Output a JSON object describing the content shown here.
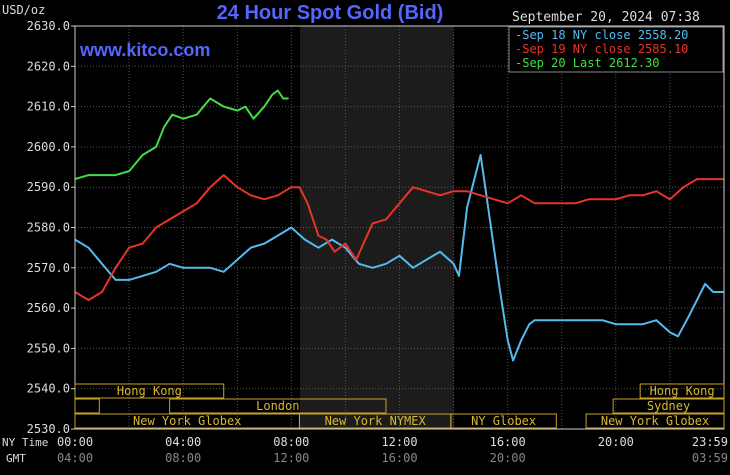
{
  "chart_data": {
    "type": "line",
    "title": "24 Hour Spot Gold (Bid)",
    "site": "www.kitco.com",
    "unit_label": "USD/oz",
    "timestamp": "September 20, 2024 07:38",
    "ylim": [
      2530,
      2630
    ],
    "y_ticks": [
      "2630.0",
      "2620.0",
      "2610.0",
      "2600.0",
      "2590.0",
      "2580.0",
      "2570.0",
      "2560.0",
      "2550.0",
      "2540.0",
      "2530.0"
    ],
    "x_row_labels": [
      "NY Time",
      "GMT"
    ],
    "ny_time_ticks": [
      "00:00",
      "04:00",
      "08:00",
      "12:00",
      "16:00",
      "20:00",
      "23:59"
    ],
    "gmt_ticks": [
      "04:00",
      "08:00",
      "12:00",
      "16:00",
      "20:00",
      "03:59"
    ],
    "series": [
      {
        "name": "Sep 18 NY close 2558.20",
        "color": "#55bbee",
        "points": [
          [
            0,
            2577
          ],
          [
            0.5,
            2575
          ],
          [
            1,
            2571
          ],
          [
            1.5,
            2567
          ],
          [
            2,
            2567
          ],
          [
            2.5,
            2568
          ],
          [
            3,
            2569
          ],
          [
            3.5,
            2571
          ],
          [
            4,
            2570
          ],
          [
            4.5,
            2570
          ],
          [
            5,
            2570
          ],
          [
            5.5,
            2569
          ],
          [
            6,
            2572
          ],
          [
            6.5,
            2575
          ],
          [
            7,
            2576
          ],
          [
            7.5,
            2578
          ],
          [
            8,
            2580
          ],
          [
            8.5,
            2577
          ],
          [
            9,
            2575
          ],
          [
            9.5,
            2577
          ],
          [
            10,
            2575
          ],
          [
            10.5,
            2571
          ],
          [
            11,
            2570
          ],
          [
            11.5,
            2571
          ],
          [
            12,
            2573
          ],
          [
            12.5,
            2570
          ],
          [
            13,
            2572
          ],
          [
            13.5,
            2574
          ],
          [
            14,
            2571
          ],
          [
            14.2,
            2568
          ],
          [
            14.5,
            2585
          ],
          [
            15,
            2598
          ],
          [
            15.3,
            2584
          ],
          [
            15.7,
            2565
          ],
          [
            16,
            2552
          ],
          [
            16.2,
            2547
          ],
          [
            16.5,
            2552
          ],
          [
            16.8,
            2556
          ],
          [
            17,
            2557
          ],
          [
            17.5,
            2557
          ],
          [
            18,
            2557
          ],
          [
            18.5,
            2557
          ],
          [
            19,
            2557
          ],
          [
            19.5,
            2557
          ],
          [
            20,
            2556
          ],
          [
            20.5,
            2556
          ],
          [
            21,
            2556
          ],
          [
            21.5,
            2557
          ],
          [
            22,
            2554
          ],
          [
            22.3,
            2553
          ],
          [
            22.7,
            2558
          ],
          [
            23,
            2562
          ],
          [
            23.3,
            2566
          ],
          [
            23.6,
            2564
          ],
          [
            24,
            2564
          ]
        ]
      },
      {
        "name": "Sep 19 NY close 2585.10",
        "color": "#e83428",
        "points": [
          [
            0,
            2564
          ],
          [
            0.5,
            2562
          ],
          [
            1,
            2564
          ],
          [
            1.5,
            2570
          ],
          [
            2,
            2575
          ],
          [
            2.5,
            2576
          ],
          [
            3,
            2580
          ],
          [
            3.5,
            2582
          ],
          [
            4,
            2584
          ],
          [
            4.5,
            2586
          ],
          [
            5,
            2590
          ],
          [
            5.5,
            2593
          ],
          [
            6,
            2590
          ],
          [
            6.5,
            2588
          ],
          [
            7,
            2587
          ],
          [
            7.5,
            2588
          ],
          [
            8,
            2590
          ],
          [
            8.3,
            2590
          ],
          [
            8.6,
            2586
          ],
          [
            9,
            2578
          ],
          [
            9.3,
            2577
          ],
          [
            9.6,
            2574
          ],
          [
            10,
            2576
          ],
          [
            10.4,
            2572
          ],
          [
            10.8,
            2578
          ],
          [
            11,
            2581
          ],
          [
            11.5,
            2582
          ],
          [
            12,
            2586
          ],
          [
            12.5,
            2590
          ],
          [
            13,
            2589
          ],
          [
            13.5,
            2588
          ],
          [
            14,
            2589
          ],
          [
            14.5,
            2589
          ],
          [
            15,
            2588
          ],
          [
            15.5,
            2587
          ],
          [
            16,
            2586
          ],
          [
            16.5,
            2588
          ],
          [
            17,
            2586
          ],
          [
            17.5,
            2586
          ],
          [
            18,
            2586
          ],
          [
            18.5,
            2586
          ],
          [
            19,
            2587
          ],
          [
            19.5,
            2587
          ],
          [
            20,
            2587
          ],
          [
            20.5,
            2588
          ],
          [
            21,
            2588
          ],
          [
            21.5,
            2589
          ],
          [
            22,
            2587
          ],
          [
            22.5,
            2590
          ],
          [
            23,
            2592
          ],
          [
            23.5,
            2592
          ],
          [
            24,
            2592
          ]
        ]
      },
      {
        "name": "Sep 20 Last 2612.30",
        "color": "#44dd44",
        "points": [
          [
            0,
            2592
          ],
          [
            0.5,
            2593
          ],
          [
            1,
            2593
          ],
          [
            1.5,
            2593
          ],
          [
            2,
            2594
          ],
          [
            2.5,
            2598
          ],
          [
            3,
            2600
          ],
          [
            3.3,
            2605
          ],
          [
            3.6,
            2608
          ],
          [
            4,
            2607
          ],
          [
            4.5,
            2608
          ],
          [
            5,
            2612
          ],
          [
            5.5,
            2610
          ],
          [
            6,
            2609
          ],
          [
            6.3,
            2610
          ],
          [
            6.6,
            2607
          ],
          [
            7,
            2610
          ],
          [
            7.3,
            2613
          ],
          [
            7.5,
            2614
          ],
          [
            7.7,
            2612
          ],
          [
            7.9,
            2612
          ]
        ]
      }
    ],
    "shaded_region": [
      8.32,
      14.0
    ],
    "grid": true,
    "legend_position": "top-right",
    "sessions": {
      "row1": [
        {
          "label": "Hong Kong",
          "start": 0,
          "end": 5.5,
          "show_text": true
        },
        {
          "label": "Hong Kong",
          "start": 20.9,
          "end": 24,
          "show_text": true
        }
      ],
      "row2": [
        {
          "label": "",
          "start": 0,
          "end": 0.9,
          "show_text": false
        },
        {
          "label": "London",
          "start": 3.5,
          "end": 11.5,
          "show_text": true
        },
        {
          "label": "Sydney",
          "start": 19.9,
          "end": 24,
          "show_text": true
        }
      ],
      "row3": [
        {
          "label": "New York Globex",
          "start": 0,
          "end": 8.3,
          "show_text": true
        },
        {
          "label": "New York NYMEX",
          "start": 8.3,
          "end": 13.9,
          "show_text": true
        },
        {
          "label": "NY Globex",
          "start": 13.9,
          "end": 17.8,
          "show_text": true
        },
        {
          "label": "New York Globex",
          "start": 18.9,
          "end": 24,
          "show_text": true
        }
      ]
    }
  }
}
